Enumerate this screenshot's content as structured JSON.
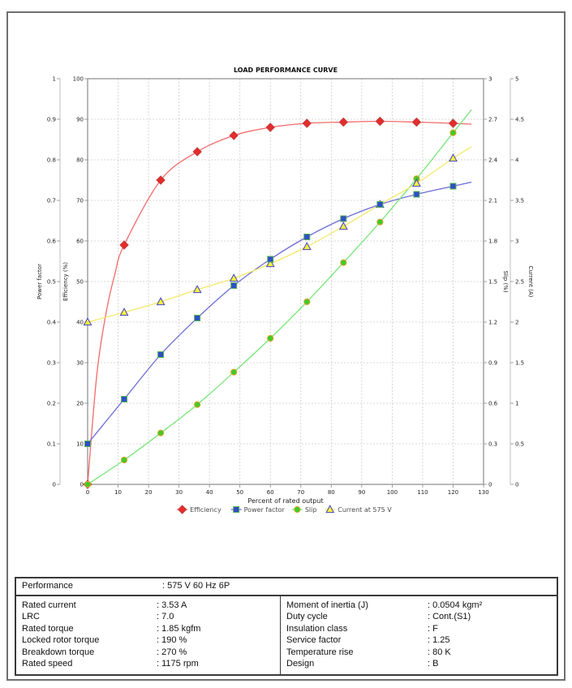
{
  "page_title": "LOAD PERFORMANCE CURVE",
  "chart_data": {
    "type": "line",
    "title": "LOAD PERFORMANCE CURVE",
    "xlabel": "Percent of rated output",
    "x_range": [
      0,
      130
    ],
    "x_ticks": [
      0,
      10,
      20,
      30,
      40,
      50,
      60,
      70,
      80,
      90,
      100,
      110,
      120,
      130
    ],
    "grid": "dashed",
    "legend_position": "bottom",
    "axes": [
      {
        "id": "power_factor",
        "label": "Power factor",
        "side": "left",
        "range": [
          0,
          1
        ],
        "ticks": [
          0,
          0.1,
          0.2,
          0.3,
          0.4,
          0.5,
          0.6,
          0.7,
          0.8,
          0.9,
          1
        ]
      },
      {
        "id": "efficiency",
        "label": "Efficiency (%)",
        "side": "left",
        "range": [
          0,
          100
        ],
        "ticks": [
          0,
          10,
          20,
          30,
          40,
          50,
          60,
          70,
          80,
          90,
          100
        ]
      },
      {
        "id": "slip",
        "label": "Slip (%)",
        "side": "right",
        "range": [
          0,
          3
        ],
        "ticks": [
          0,
          0.3,
          0.6,
          0.9,
          1.2,
          1.5,
          1.8,
          2.1,
          2.4,
          2.7,
          3
        ]
      },
      {
        "id": "current",
        "label": "Current (A)",
        "side": "right",
        "range": [
          0,
          5
        ],
        "ticks": [
          0,
          0.5,
          1,
          1.5,
          2,
          2.5,
          3,
          3.5,
          4,
          4.5,
          5
        ]
      }
    ],
    "x": [
      0,
      12,
      24,
      36,
      48,
      60,
      72,
      84,
      96,
      108,
      120
    ],
    "series": [
      {
        "name": "Efficiency",
        "axis": "efficiency",
        "marker": "diamond",
        "line_color": "#f26a6a",
        "marker_fill": "#e62b2b",
        "marker_edge": "#c43a3a",
        "values": [
          0,
          59,
          75,
          82,
          86,
          88,
          89,
          89.3,
          89.5,
          89.3,
          89
        ],
        "lead_points": [
          [
            3,
            27
          ],
          [
            6,
            42
          ],
          [
            9,
            52
          ]
        ],
        "end_point": [
          126,
          88.8
        ]
      },
      {
        "name": "Power factor",
        "axis": "power_factor",
        "marker": "square",
        "line_color": "#6b6bd6",
        "marker_fill": "#2e4ec6",
        "marker_edge": "#57b257",
        "values": [
          0.1,
          0.21,
          0.32,
          0.41,
          0.49,
          0.555,
          0.61,
          0.655,
          0.69,
          0.715,
          0.735
        ],
        "end_point": [
          126,
          0.745
        ]
      },
      {
        "name": "Slip",
        "axis": "slip",
        "marker": "circle",
        "line_color": "#79e579",
        "marker_fill": "#3fcc26",
        "marker_edge": "#e0a22e",
        "values": [
          0,
          0.18,
          0.38,
          0.59,
          0.83,
          1.08,
          1.35,
          1.64,
          1.94,
          2.26,
          2.6
        ],
        "end_point": [
          126,
          2.77
        ]
      },
      {
        "name": "Current at 575 V",
        "axis": "current",
        "marker": "triangle",
        "line_color": "#f3e96a",
        "marker_fill": "#f7f23a",
        "marker_edge": "#4343c9",
        "values": [
          2.0,
          2.12,
          2.25,
          2.4,
          2.54,
          2.72,
          2.93,
          3.18,
          3.45,
          3.71,
          4.02
        ],
        "end_point": [
          126,
          4.16
        ]
      }
    ],
    "legend": [
      {
        "label": "Efficiency"
      },
      {
        "label": "Power factor"
      },
      {
        "label": "Slip"
      },
      {
        "label": "Current at 575 V"
      }
    ]
  },
  "table": {
    "performance": {
      "label": "Performance",
      "value": ": 575 V 60 Hz 6P"
    },
    "left_rows": [
      {
        "label": "Rated current",
        "value": ": 3.53 A"
      },
      {
        "label": "LRC",
        "value": ": 7.0"
      },
      {
        "label": "Rated torque",
        "value": ": 1.85 kgfm"
      },
      {
        "label": "Locked rotor torque",
        "value": ": 190 %"
      },
      {
        "label": "Breakdown torque",
        "value": ": 270 %"
      },
      {
        "label": "Rated speed",
        "value": ": 1175 rpm"
      }
    ],
    "right_rows": [
      {
        "label": "Moment of inertia (J)",
        "value": ": 0.0504 kgm²"
      },
      {
        "label": "Duty cycle",
        "value": ": Cont.(S1)"
      },
      {
        "label": "Insulation class",
        "value": ": F"
      },
      {
        "label": "Service factor",
        "value": ": 1.25"
      },
      {
        "label": "Temperature rise",
        "value": ": 80 K"
      },
      {
        "label": "Design",
        "value": ": B"
      }
    ]
  }
}
